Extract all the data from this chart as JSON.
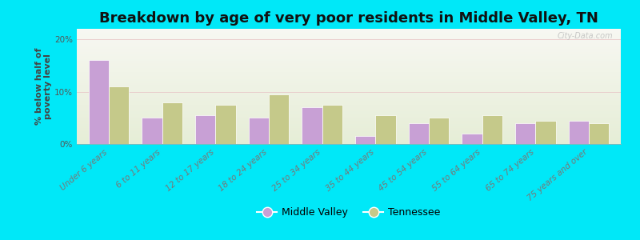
{
  "title": "Breakdown by age of very poor residents in Middle Valley, TN",
  "ylabel": "% below half of\npoverty level",
  "categories": [
    "Under 6 years",
    "6 to 11 years",
    "12 to 17 years",
    "18 to 24 years",
    "25 to 34 years",
    "35 to 44 years",
    "45 to 54 years",
    "55 to 64 years",
    "65 to 74 years",
    "75 years and over"
  ],
  "middle_valley": [
    16.0,
    5.0,
    5.5,
    5.0,
    7.0,
    1.5,
    4.0,
    2.0,
    4.0,
    4.5
  ],
  "tennessee": [
    11.0,
    8.0,
    7.5,
    9.5,
    7.5,
    5.5,
    5.0,
    5.5,
    4.5,
    4.0
  ],
  "mv_color": "#c8a0d5",
  "tn_color": "#c5c98a",
  "background_outer": "#00e8f8",
  "ylim": [
    0,
    22
  ],
  "yticks": [
    0,
    10,
    20
  ],
  "ytick_labels": [
    "0%",
    "10%",
    "20%"
  ],
  "legend_mv": "Middle Valley",
  "legend_tn": "Tennessee",
  "title_fontsize": 13,
  "axis_label_fontsize": 8,
  "tick_fontsize": 7.5,
  "legend_fontsize": 9,
  "bar_width": 0.38,
  "watermark": "City-Data.com"
}
